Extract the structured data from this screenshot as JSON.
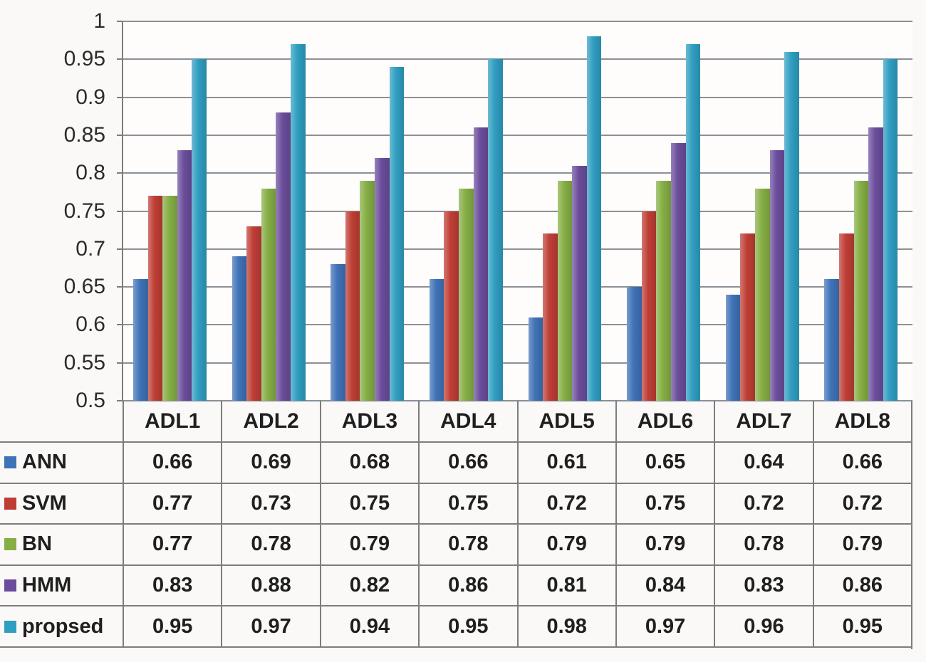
{
  "chart_data": {
    "type": "bar",
    "title": "",
    "xlabel": "",
    "ylabel": "",
    "categories": [
      "ADL1",
      "ADL2",
      "ADL3",
      "ADL4",
      "ADL5",
      "ADL6",
      "ADL7",
      "ADL8"
    ],
    "series": [
      {
        "name": "ANN",
        "color": "#3f72b7",
        "values": [
          0.66,
          0.69,
          0.68,
          0.66,
          0.61,
          0.65,
          0.64,
          0.66
        ]
      },
      {
        "name": "SVM",
        "color": "#be3e35",
        "values": [
          0.77,
          0.73,
          0.75,
          0.75,
          0.72,
          0.75,
          0.72,
          0.72
        ]
      },
      {
        "name": "BN",
        "color": "#85ae44",
        "values": [
          0.77,
          0.78,
          0.79,
          0.78,
          0.79,
          0.79,
          0.78,
          0.79
        ]
      },
      {
        "name": "HMM",
        "color": "#6b4d9c",
        "values": [
          0.83,
          0.88,
          0.82,
          0.86,
          0.81,
          0.84,
          0.83,
          0.86
        ]
      },
      {
        "name": "propsed",
        "color": "#2f9ec1",
        "values": [
          0.95,
          0.97,
          0.94,
          0.95,
          0.98,
          0.97,
          0.96,
          0.95
        ]
      }
    ],
    "ylim": [
      0.5,
      1.0
    ],
    "ytick_step": 0.05,
    "ytick_labels": [
      "0.5",
      "0.55",
      "0.6",
      "0.65",
      "0.7",
      "0.75",
      "0.8",
      "0.85",
      "0.9",
      "0.95",
      "1"
    ],
    "grid": "horizontal-only",
    "legend_position": "data-table-row-labels"
  }
}
